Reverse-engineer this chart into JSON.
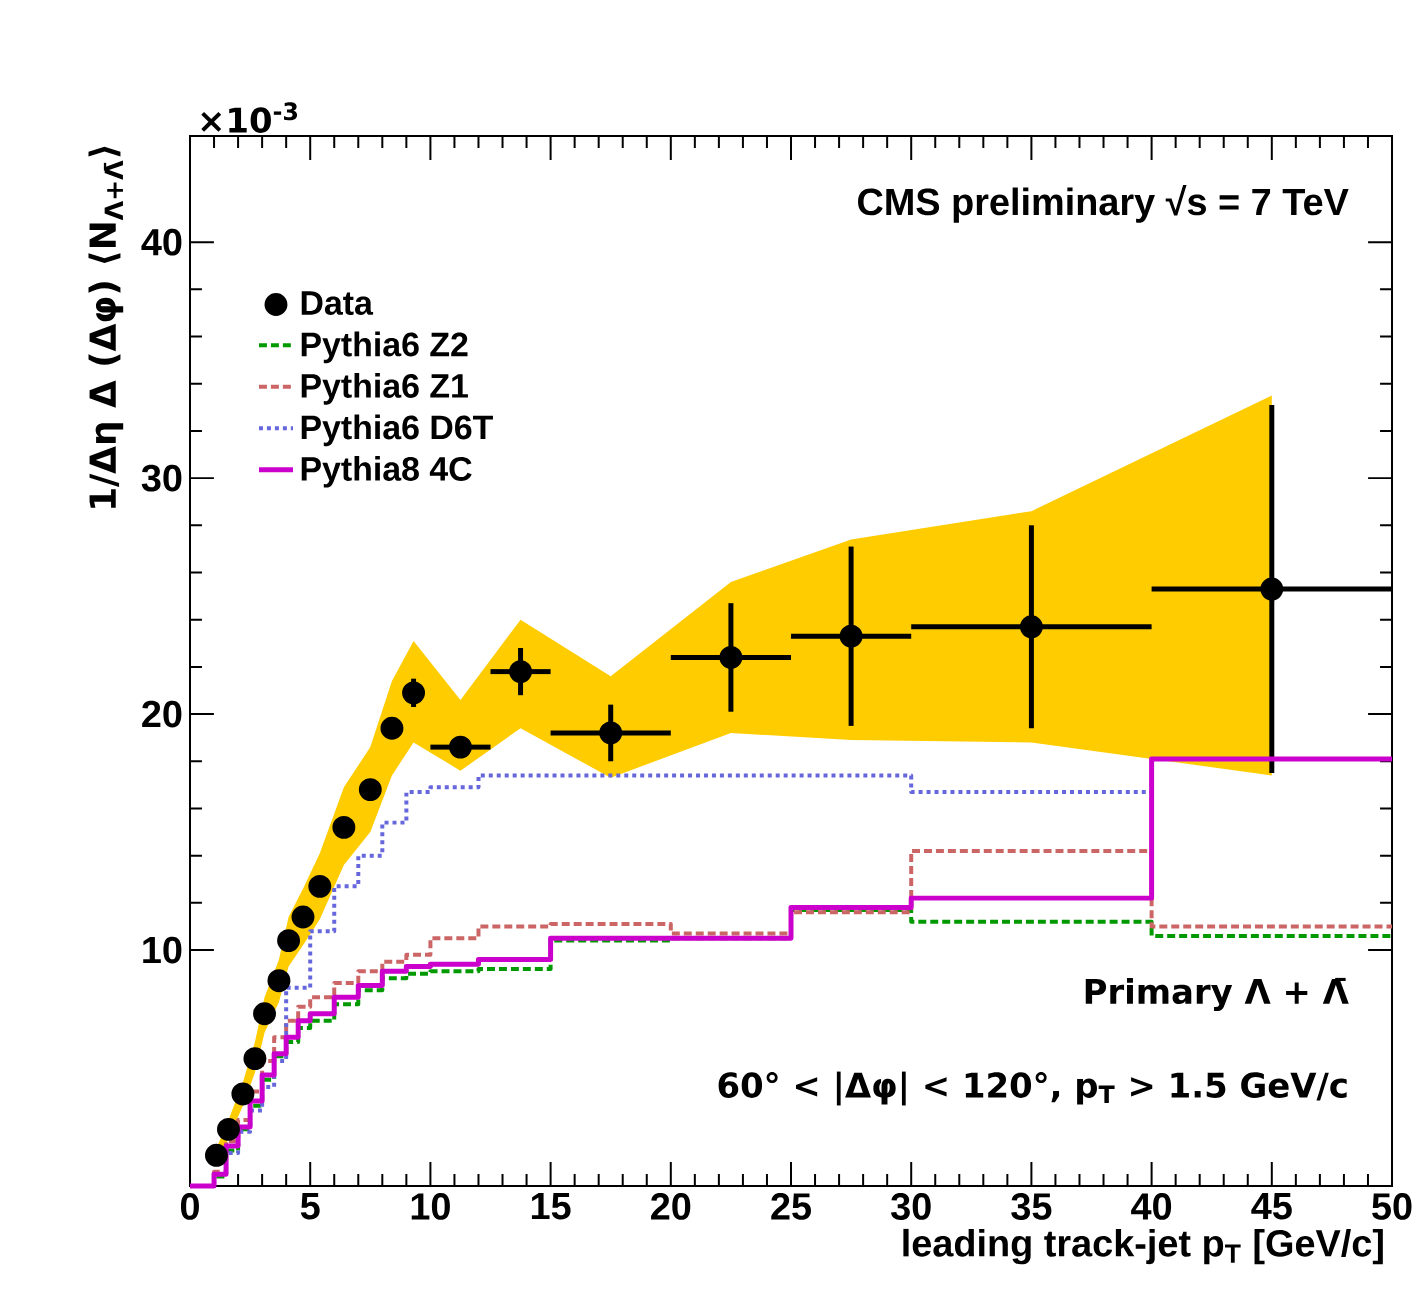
{
  "chart_data": {
    "type": "step",
    "title": "CMS preliminary  √s = 7 TeV",
    "xlabel": "leading track-jet p$_{T}$ [GeV/c]",
    "ylabel": "1/Δη Δ (Δφ) ⟨N$_{Λ+Λ̄}$⟩",
    "annotations": [
      "×10$^{-3}$",
      "Primary  Λ + Λ̄",
      "60° < |Δφ| < 120°, p$_{T}$ > 1.5 GeV/c"
    ],
    "xlim": [
      0,
      50
    ],
    "ylim": [
      0,
      44.5
    ],
    "xticks": [
      0,
      5,
      10,
      15,
      20,
      25,
      30,
      35,
      40,
      45,
      50
    ],
    "yticks": [
      10,
      20,
      30,
      40
    ],
    "legend": "top left",
    "series": [
      {
        "name": "Data",
        "type": "scatter",
        "color": "#000000",
        "x": [
          1.1,
          1.6,
          2.2,
          2.7,
          3.1,
          3.7,
          4.1,
          4.7,
          5.4,
          6.4,
          7.5,
          8.4,
          9.3,
          11.25,
          13.75,
          17.5,
          22.5,
          27.5,
          35,
          45
        ],
        "values": [
          1.3,
          2.4,
          3.9,
          5.4,
          7.3,
          8.7,
          10.4,
          11.4,
          12.7,
          15.2,
          16.8,
          19.4,
          20.9,
          18.6,
          21.8,
          19.2,
          22.4,
          23.3,
          23.7,
          25.3
        ],
        "errors": [
          null,
          null,
          null,
          null,
          null,
          null,
          null,
          null,
          null,
          null,
          null,
          null,
          0.6,
          0.4,
          1.0,
          1.2,
          2.3,
          3.8,
          4.3,
          7.8
        ],
        "xerrors": [
          null,
          null,
          null,
          null,
          null,
          null,
          null,
          null,
          null,
          null,
          null,
          null,
          null,
          1.25,
          1.25,
          2.5,
          2.5,
          2.5,
          5,
          5
        ],
        "lower": [
          1.0,
          2.0,
          3.4,
          4.8,
          6.5,
          7.8,
          9.3,
          10.2,
          11.3,
          13.6,
          15.0,
          17.4,
          18.8,
          17.6,
          19.4,
          17.3,
          19.2,
          18.9,
          18.8,
          17.4
        ],
        "upper": [
          1.6,
          2.8,
          4.4,
          6.1,
          8.0,
          9.6,
          11.4,
          12.6,
          14.1,
          16.9,
          18.6,
          21.4,
          23.1,
          20.6,
          24.0,
          21.6,
          25.6,
          27.4,
          28.6,
          33.5
        ]
      },
      {
        "name": "Pythia6 Z2",
        "color": "#009900",
        "line_style": "dashed",
        "x": [
          0,
          1,
          1.5,
          2,
          2.5,
          3,
          3.5,
          4,
          4.5,
          5,
          6,
          7,
          8,
          9,
          10,
          12,
          15,
          20,
          25,
          30,
          40,
          50
        ],
        "values": [
          0,
          0.4,
          1.5,
          2.4,
          3.4,
          4.5,
          5.5,
          6.1,
          6.7,
          7.0,
          7.7,
          8.3,
          8.8,
          9.0,
          9.1,
          9.2,
          10.4,
          10.5,
          11.7,
          11.2,
          10.6,
          10.6
        ]
      },
      {
        "name": "Pythia6 Z1",
        "color": "#cc6666",
        "line_style": "dashed",
        "x": [
          0,
          1,
          1.5,
          2,
          2.5,
          3,
          3.5,
          4,
          4.5,
          5,
          6,
          7,
          8,
          9,
          10,
          12,
          15,
          20,
          25,
          30,
          40,
          50
        ],
        "values": [
          0,
          0.6,
          1.9,
          2.8,
          4.0,
          5.3,
          6.3,
          7.0,
          7.6,
          8.0,
          8.6,
          9.1,
          9.5,
          9.8,
          10.5,
          11.0,
          11.1,
          10.7,
          11.6,
          14.2,
          11.0,
          11.0
        ]
      },
      {
        "name": "Pythia6 D6T",
        "color": "#6666dd",
        "line_style": "dotted",
        "x": [
          0,
          1,
          1.5,
          2,
          2.5,
          3,
          3.5,
          4,
          5,
          6,
          7,
          8,
          9,
          10,
          12,
          15,
          30,
          40
        ],
        "values": [
          0,
          0.5,
          1.4,
          2.3,
          3.2,
          4.2,
          5.3,
          8.4,
          10.8,
          12.7,
          14.0,
          15.4,
          16.7,
          16.9,
          17.4,
          17.4,
          16.7,
          16.7
        ]
      },
      {
        "name": "Pythia8 4C",
        "color": "#cc00cc",
        "line_style": "solid",
        "x": [
          0,
          1,
          1.5,
          2,
          2.5,
          3,
          3.5,
          4,
          4.5,
          5,
          6,
          7,
          8,
          9,
          10,
          12,
          15,
          25,
          30,
          40,
          50
        ],
        "values": [
          0,
          0.5,
          1.7,
          2.5,
          3.6,
          4.7,
          5.6,
          6.3,
          7.0,
          7.3,
          8.0,
          8.5,
          9.1,
          9.3,
          9.4,
          9.6,
          10.5,
          11.8,
          12.2,
          18.1,
          18.1
        ]
      }
    ]
  }
}
